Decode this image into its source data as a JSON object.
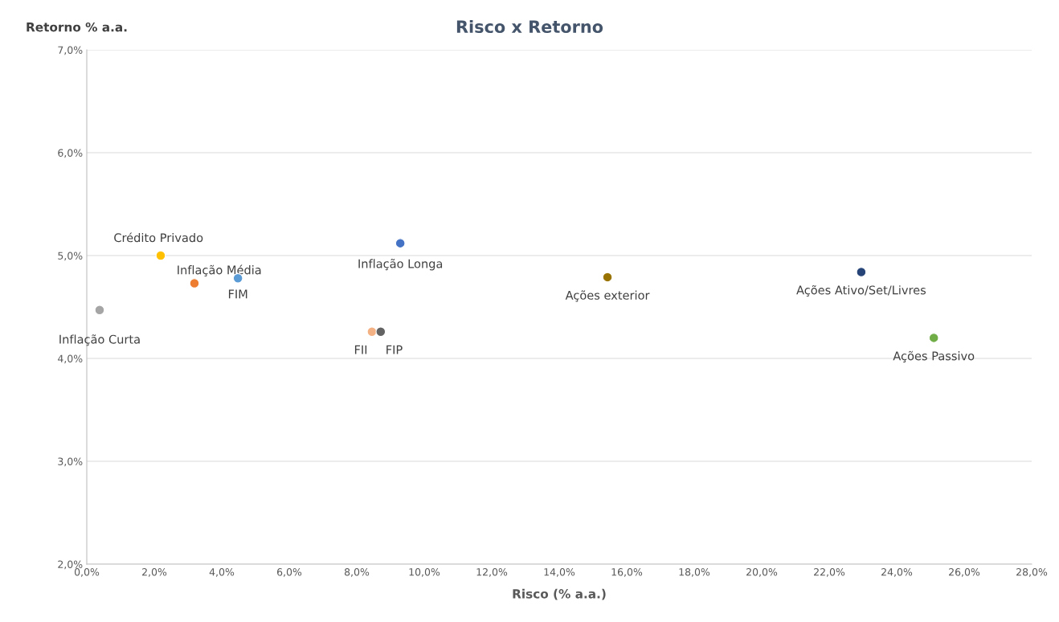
{
  "chart_data": {
    "type": "scatter",
    "title": "Risco x Retorno",
    "xlabel": "Risco (% a.a.)",
    "ylabel": "Retorno % a.a.",
    "series": [
      {
        "name": "Inflação Curta",
        "color": "#a5a5a5",
        "x": [
          0.38
        ],
        "values": [
          4.47
        ]
      },
      {
        "name": "Crédito Privado",
        "color": "#ffc000",
        "x": [
          2.19
        ],
        "values": [
          5.0
        ]
      },
      {
        "name": "Inflação Média",
        "color": "#ed7d31",
        "x": [
          3.19
        ],
        "values": [
          4.73
        ]
      },
      {
        "name": "FIM",
        "color": "#5b9bd5",
        "x": [
          4.48
        ],
        "values": [
          4.78
        ]
      },
      {
        "name": "Inflação Longa",
        "color": "#4472c4",
        "x": [
          9.29
        ],
        "values": [
          5.12
        ]
      },
      {
        "name": "FII",
        "color": "#f4b183",
        "x": [
          8.45
        ],
        "values": [
          4.26
        ]
      },
      {
        "name": "FIP",
        "color": "#636363",
        "x": [
          8.71
        ],
        "values": [
          4.26
        ]
      },
      {
        "name": "Ações exterior",
        "color": "#997300",
        "x": [
          15.43
        ],
        "values": [
          4.79
        ]
      },
      {
        "name": "Ações Ativo/Set/Livres",
        "color": "#264478",
        "x": [
          22.95
        ],
        "values": [
          4.84
        ]
      },
      {
        "name": "Ações Passivo",
        "color": "#70ad47",
        "x": [
          25.1
        ],
        "values": [
          4.2
        ]
      }
    ],
    "xlim": [
      0,
      28
    ],
    "ylim": [
      2,
      7
    ],
    "xticks": [
      {
        "value": 0,
        "label": "0,0%"
      },
      {
        "value": 2,
        "label": "2,0%"
      },
      {
        "value": 4,
        "label": "4,0%"
      },
      {
        "value": 6,
        "label": "6,0%"
      },
      {
        "value": 8,
        "label": "8,0%"
      },
      {
        "value": 10,
        "label": "10,0%"
      },
      {
        "value": 12,
        "label": "12,0%"
      },
      {
        "value": 14,
        "label": "14,0%"
      },
      {
        "value": 16,
        "label": "16,0%"
      },
      {
        "value": 18,
        "label": "18,0%"
      },
      {
        "value": 20,
        "label": "20,0%"
      },
      {
        "value": 22,
        "label": "22,0%"
      },
      {
        "value": 24,
        "label": "24,0%"
      },
      {
        "value": 26,
        "label": "26,0%"
      },
      {
        "value": 28,
        "label": "28,0%"
      }
    ],
    "yticks": [
      {
        "value": 2,
        "label": "2,0%"
      },
      {
        "value": 3,
        "label": "3,0%"
      },
      {
        "value": 4,
        "label": "4,0%"
      },
      {
        "value": 5,
        "label": "5,0%"
      },
      {
        "value": 6,
        "label": "6,0%"
      },
      {
        "value": 7,
        "label": "7,0%"
      }
    ],
    "grid": "y",
    "marker": "circle"
  }
}
